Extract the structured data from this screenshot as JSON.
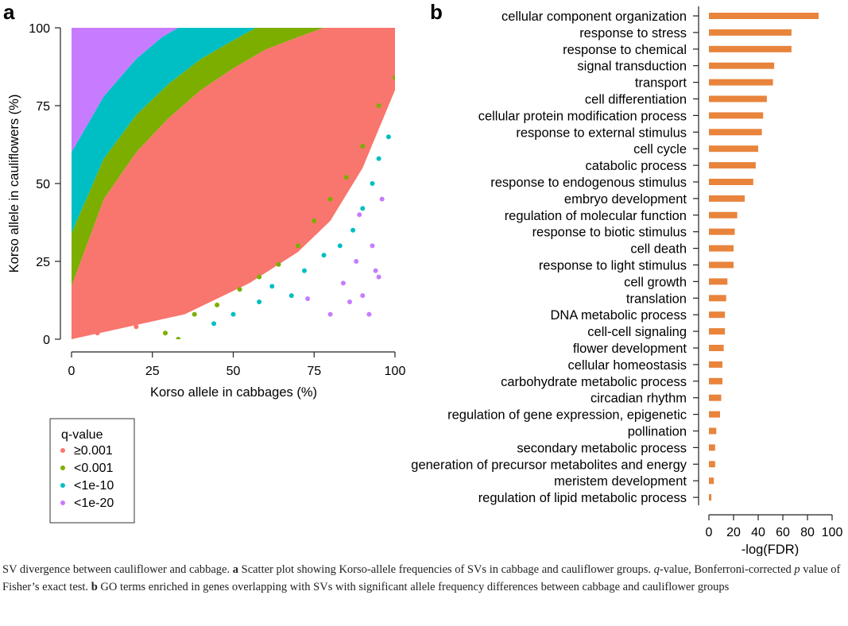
{
  "panels": {
    "a": {
      "label": "a"
    },
    "b": {
      "label": "b"
    }
  },
  "chart_data": [
    {
      "type": "scatter",
      "panel": "a",
      "title": "",
      "xlabel": "Korso allele in cabbages (%)",
      "ylabel": "Korso allele in cauliflowers (%)",
      "xlim": [
        0,
        100
      ],
      "ylim": [
        0,
        100
      ],
      "xticks": [
        0,
        25,
        50,
        75,
        100
      ],
      "yticks": [
        0,
        25,
        50,
        75,
        100
      ],
      "legend": {
        "title": "q-value",
        "position": "bottom-left, below plot",
        "entries": [
          {
            "label": "≥0.001",
            "color": "#F8766D"
          },
          {
            "label": "<0.001",
            "color": "#7CAE00"
          },
          {
            "label": "<1e-10",
            "color": "#00BFC4"
          },
          {
            "label": "<1e-20",
            "color": "#C77CFF"
          }
        ]
      },
      "series": [
        {
          "name": "<1e-20",
          "color": "#C77CFF",
          "description": "upper-left region above cyan band; scattered lower-right x 70-95, y 5-45",
          "band_upper": [
            [
              0,
              100
            ],
            [
              100,
              100
            ]
          ],
          "band_lower": [
            [
              0,
              60
            ],
            [
              10,
              78
            ],
            [
              20,
              90
            ],
            [
              28,
              97
            ],
            [
              33,
              100
            ]
          ],
          "scatter_points": [
            [
              73,
              13
            ],
            [
              80,
              8
            ],
            [
              84,
              18
            ],
            [
              86,
              12
            ],
            [
              88,
              25
            ],
            [
              89,
              40
            ],
            [
              90,
              14
            ],
            [
              92,
              8
            ],
            [
              93,
              30
            ],
            [
              94,
              22
            ],
            [
              95,
              20
            ],
            [
              96,
              45
            ]
          ]
        },
        {
          "name": "<1e-10",
          "color": "#00BFC4",
          "band_upper": [
            [
              0,
              60
            ],
            [
              10,
              78
            ],
            [
              20,
              90
            ],
            [
              28,
              97
            ],
            [
              33,
              100
            ]
          ],
          "band_lower": [
            [
              0,
              34
            ],
            [
              10,
              58
            ],
            [
              20,
              72
            ],
            [
              30,
              82
            ],
            [
              40,
              90
            ],
            [
              50,
              96
            ],
            [
              57,
              100
            ]
          ],
          "scatter_points": [
            [
              44,
              5
            ],
            [
              50,
              8
            ],
            [
              58,
              12
            ],
            [
              62,
              17
            ],
            [
              68,
              14
            ],
            [
              72,
              22
            ],
            [
              78,
              27
            ],
            [
              83,
              30
            ],
            [
              87,
              35
            ],
            [
              90,
              42
            ],
            [
              93,
              50
            ],
            [
              95,
              58
            ],
            [
              98,
              65
            ]
          ]
        },
        {
          "name": "<0.001",
          "color": "#7CAE00",
          "band_upper": [
            [
              0,
              34
            ],
            [
              10,
              58
            ],
            [
              20,
              72
            ],
            [
              30,
              82
            ],
            [
              40,
              90
            ],
            [
              50,
              96
            ],
            [
              57,
              100
            ]
          ],
          "band_lower": [
            [
              0,
              17
            ],
            [
              10,
              45
            ],
            [
              20,
              60
            ],
            [
              30,
              71
            ],
            [
              40,
              80
            ],
            [
              50,
              87
            ],
            [
              60,
              93
            ],
            [
              70,
              97
            ],
            [
              78,
              100
            ]
          ],
          "scatter_points": [
            [
              29,
              2
            ],
            [
              33,
              0
            ],
            [
              38,
              8
            ],
            [
              45,
              11
            ],
            [
              52,
              16
            ],
            [
              58,
              20
            ],
            [
              64,
              24
            ],
            [
              70,
              30
            ],
            [
              75,
              38
            ],
            [
              80,
              45
            ],
            [
              85,
              52
            ],
            [
              90,
              62
            ],
            [
              95,
              75
            ],
            [
              100,
              84
            ]
          ]
        },
        {
          "name": "≥0.001",
          "color": "#F8766D",
          "band_upper": [
            [
              0,
              17
            ],
            [
              10,
              45
            ],
            [
              20,
              60
            ],
            [
              30,
              71
            ],
            [
              40,
              80
            ],
            [
              50,
              87
            ],
            [
              60,
              93
            ],
            [
              70,
              97
            ],
            [
              78,
              100
            ],
            [
              100,
              100
            ]
          ],
          "band_lower": [
            [
              0,
              0
            ],
            [
              35,
              8
            ],
            [
              55,
              18
            ],
            [
              70,
              28
            ],
            [
              80,
              38
            ],
            [
              90,
              55
            ],
            [
              100,
              80
            ]
          ],
          "scatter_points": [
            [
              3,
              3
            ],
            [
              8,
              2
            ],
            [
              15,
              6
            ],
            [
              20,
              4
            ],
            [
              25,
              10
            ],
            [
              30,
              14
            ],
            [
              36,
              12
            ],
            [
              42,
              18
            ],
            [
              48,
              22
            ],
            [
              55,
              20
            ],
            [
              60,
              28
            ],
            [
              65,
              34
            ],
            [
              70,
              40
            ],
            [
              78,
              50
            ],
            [
              85,
              60
            ],
            [
              92,
              72
            ]
          ]
        }
      ]
    },
    {
      "type": "bar",
      "panel": "b",
      "orientation": "horizontal",
      "title": "",
      "xlabel": "-log(FDR)",
      "ylabel": "",
      "xlim": [
        0,
        100
      ],
      "xticks": [
        0,
        20,
        40,
        60,
        80,
        100
      ],
      "bar_color": "#E8843C",
      "categories": [
        "cellular component organization",
        "response to stress",
        "response to chemical",
        "signal transduction",
        "transport",
        "cell differentiation",
        "cellular protein modification process",
        "response to external stimulus",
        "cell cycle",
        "catabolic process",
        "response to endogenous stimulus",
        "embryo development",
        "regulation of molecular function",
        "response to biotic stimulus",
        "cell death",
        "response to light stimulus",
        "cell growth",
        "translation",
        "DNA metabolic process",
        "cell-cell signaling",
        "flower development",
        "cellular homeostasis",
        "carbohydrate metabolic process",
        "circadian rhythm",
        "regulation of gene expression, epigenetic",
        "pollination",
        "secondary metabolic process",
        "generation of precursor metabolites and energy",
        "meristem development",
        "regulation of lipid metabolic process"
      ],
      "values": [
        89,
        67,
        67,
        53,
        52,
        47,
        44,
        43,
        40,
        38,
        36,
        29,
        23,
        21,
        20,
        20,
        15,
        14,
        13,
        13,
        12,
        11,
        11,
        10,
        9,
        6,
        5,
        5,
        4,
        2
      ]
    }
  ],
  "caption": {
    "intro": "SV divergence between cauliflower and cabbage. ",
    "a_label": "a",
    "a_text_1": " Scatter plot showing Korso-allele frequencies of SVs in cabbage and cauliflower groups. ",
    "q_symbol": "q",
    "a_text_2": "-value, Bonferroni-corrected ",
    "p_symbol": "p",
    "a_text_3": " value of Fisher’s exact test. ",
    "b_label": "b",
    "b_text": " GO terms enriched in genes overlapping with SVs with significant allele frequency differences between cabbage and cauliflower groups"
  }
}
